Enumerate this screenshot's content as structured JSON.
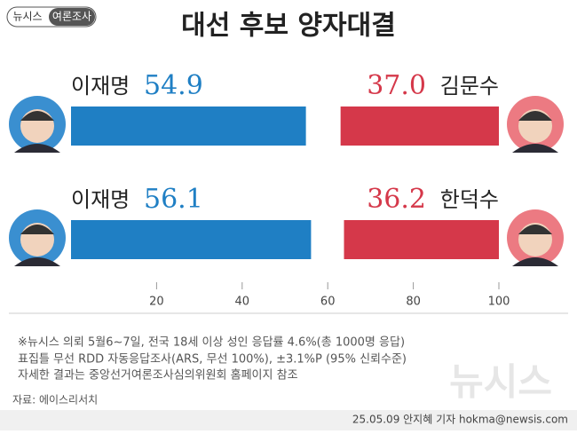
{
  "badge": {
    "brand": "뉴시스",
    "label": "여론조사"
  },
  "chart_data": {
    "type": "bar",
    "title": "대선 후보 양자대결",
    "left_color": "#1f7fc4",
    "right_color": "#d5384a",
    "rows": [
      {
        "left": {
          "name": "이재명",
          "value": 54.9
        },
        "right": {
          "name": "김문수",
          "value": 37,
          "value_label": "37.0"
        }
      },
      {
        "left": {
          "name": "이재명",
          "value": 56.1
        },
        "right": {
          "name": "한덕수",
          "value": 36.2
        }
      }
    ],
    "xlim": [
      0,
      100
    ],
    "xticks": [
      20,
      40,
      60,
      80,
      100
    ]
  },
  "notes": [
    "※뉴시스 의뢰 5월6~7일, 전국 18세 이상 성인 응답률 4.6%(총 1000명 응답)",
    "표집틀 무선 RDD 자동응답조사(ARS, 무선 100%), ±3.1%P (95% 신뢰수준)",
    "자세한 결과는 중앙선거여론조사심의위원회 홈페이지 참조"
  ],
  "source": "자료: 에이스리서치",
  "watermark": "뉴시스",
  "byline": "25.05.09 안지혜 기자 hokma@newsis.com"
}
